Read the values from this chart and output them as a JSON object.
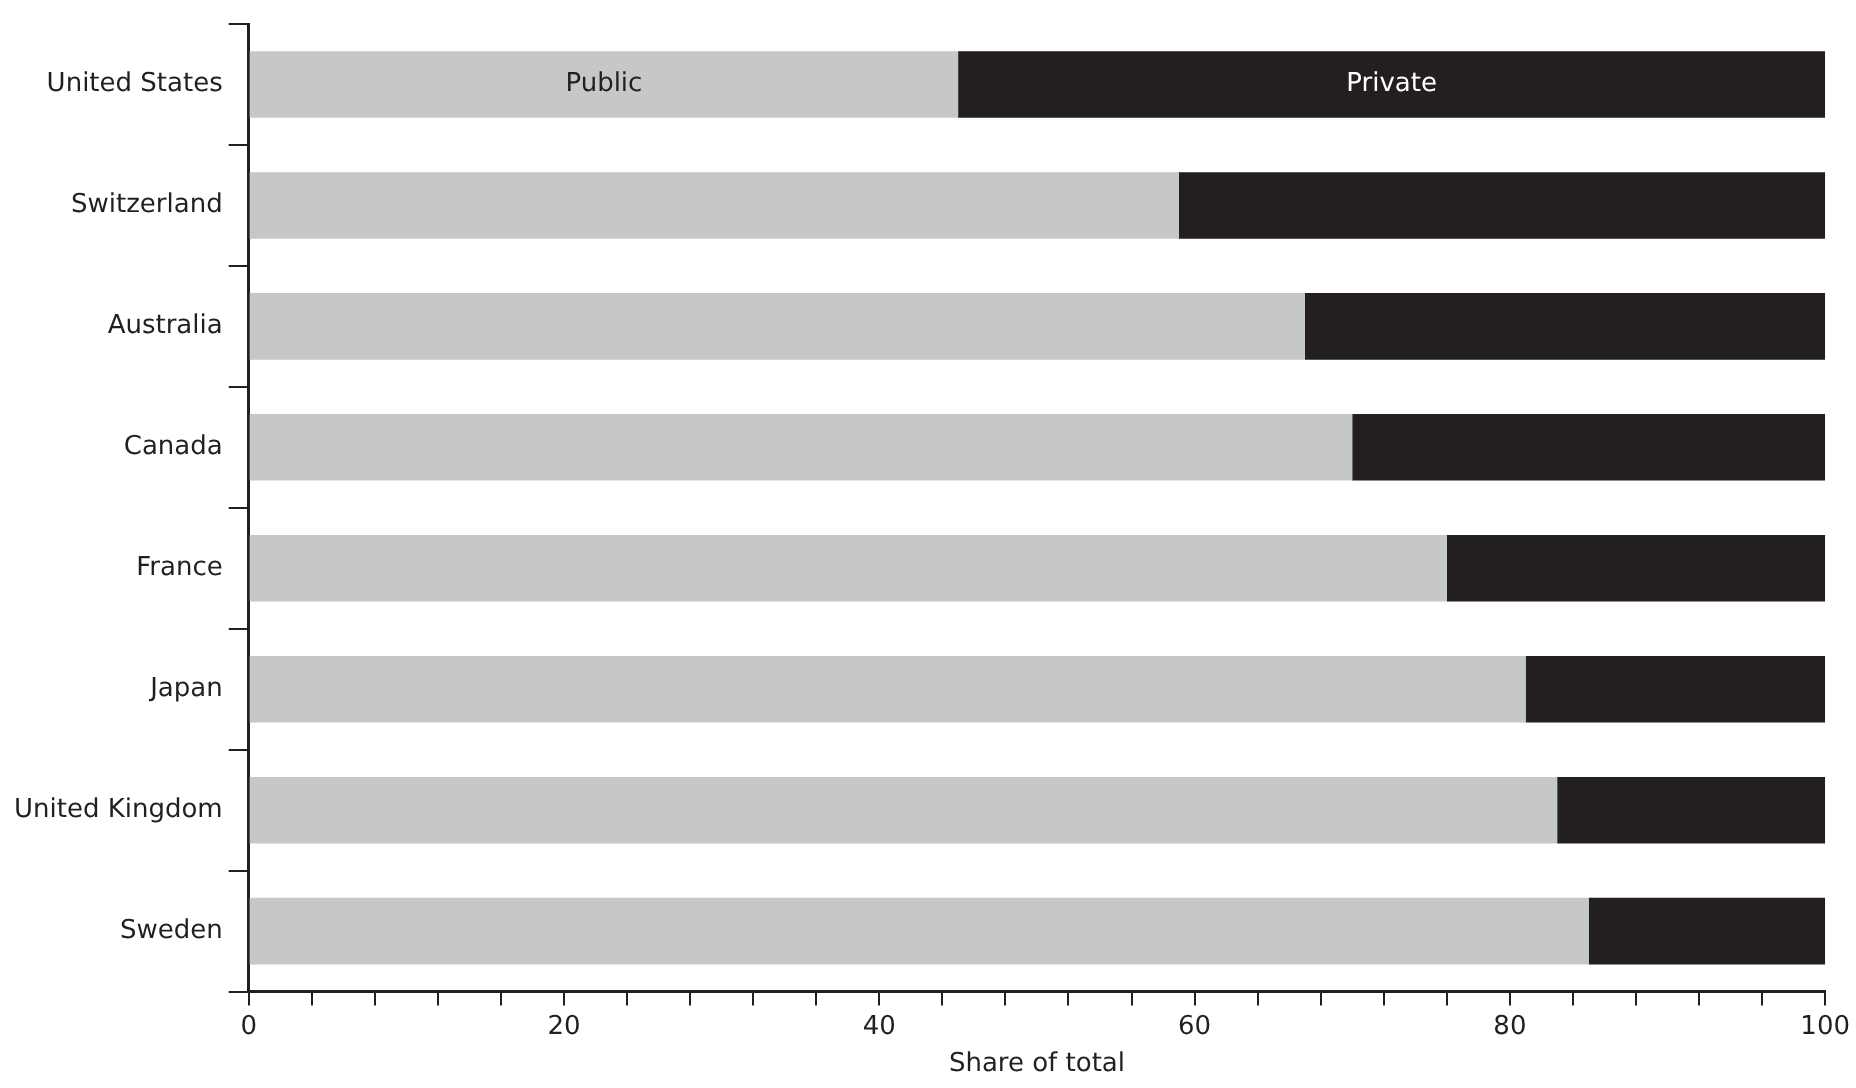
{
  "chart_data": {
    "type": "bar",
    "orientation": "horizontal",
    "stacked": true,
    "xlabel": "Share of total",
    "categories": [
      "United States",
      "Switzerland",
      "Australia",
      "Canada",
      "France",
      "Japan",
      "United Kingdom",
      "Sweden"
    ],
    "series": [
      {
        "name": "Public",
        "color": "#c6c7c9",
        "values": [
          45,
          59,
          67,
          70,
          76,
          81,
          83,
          85
        ]
      },
      {
        "name": "Private",
        "color": "#231f20",
        "values": [
          55,
          41,
          33,
          30,
          24,
          19,
          17,
          15
        ]
      }
    ],
    "xlim": [
      0,
      100
    ],
    "xticks": [
      0,
      {
        "value": 4,
        "label": null
      },
      {
        "value": 8,
        "label": null
      },
      {
        "value": 12,
        "label": null
      },
      {
        "value": 16,
        "label": null
      },
      20,
      {
        "value": 24,
        "label": null
      },
      {
        "value": 28,
        "label": null
      },
      {
        "value": 32,
        "label": null
      },
      {
        "value": 36,
        "label": null
      },
      40,
      {
        "value": 44,
        "label": null
      },
      {
        "value": 48,
        "label": null
      },
      {
        "value": 52,
        "label": null
      },
      {
        "value": 56,
        "label": null
      },
      60,
      {
        "value": 64,
        "label": null
      },
      {
        "value": 68,
        "label": null
      },
      {
        "value": 72,
        "label": null
      },
      {
        "value": 76,
        "label": null
      },
      80,
      {
        "value": 84,
        "label": null
      },
      {
        "value": 88,
        "label": null
      },
      {
        "value": 92,
        "label": null
      },
      {
        "value": 96,
        "label": null
      },
      100
    ],
    "grid": false,
    "legend": false
  }
}
